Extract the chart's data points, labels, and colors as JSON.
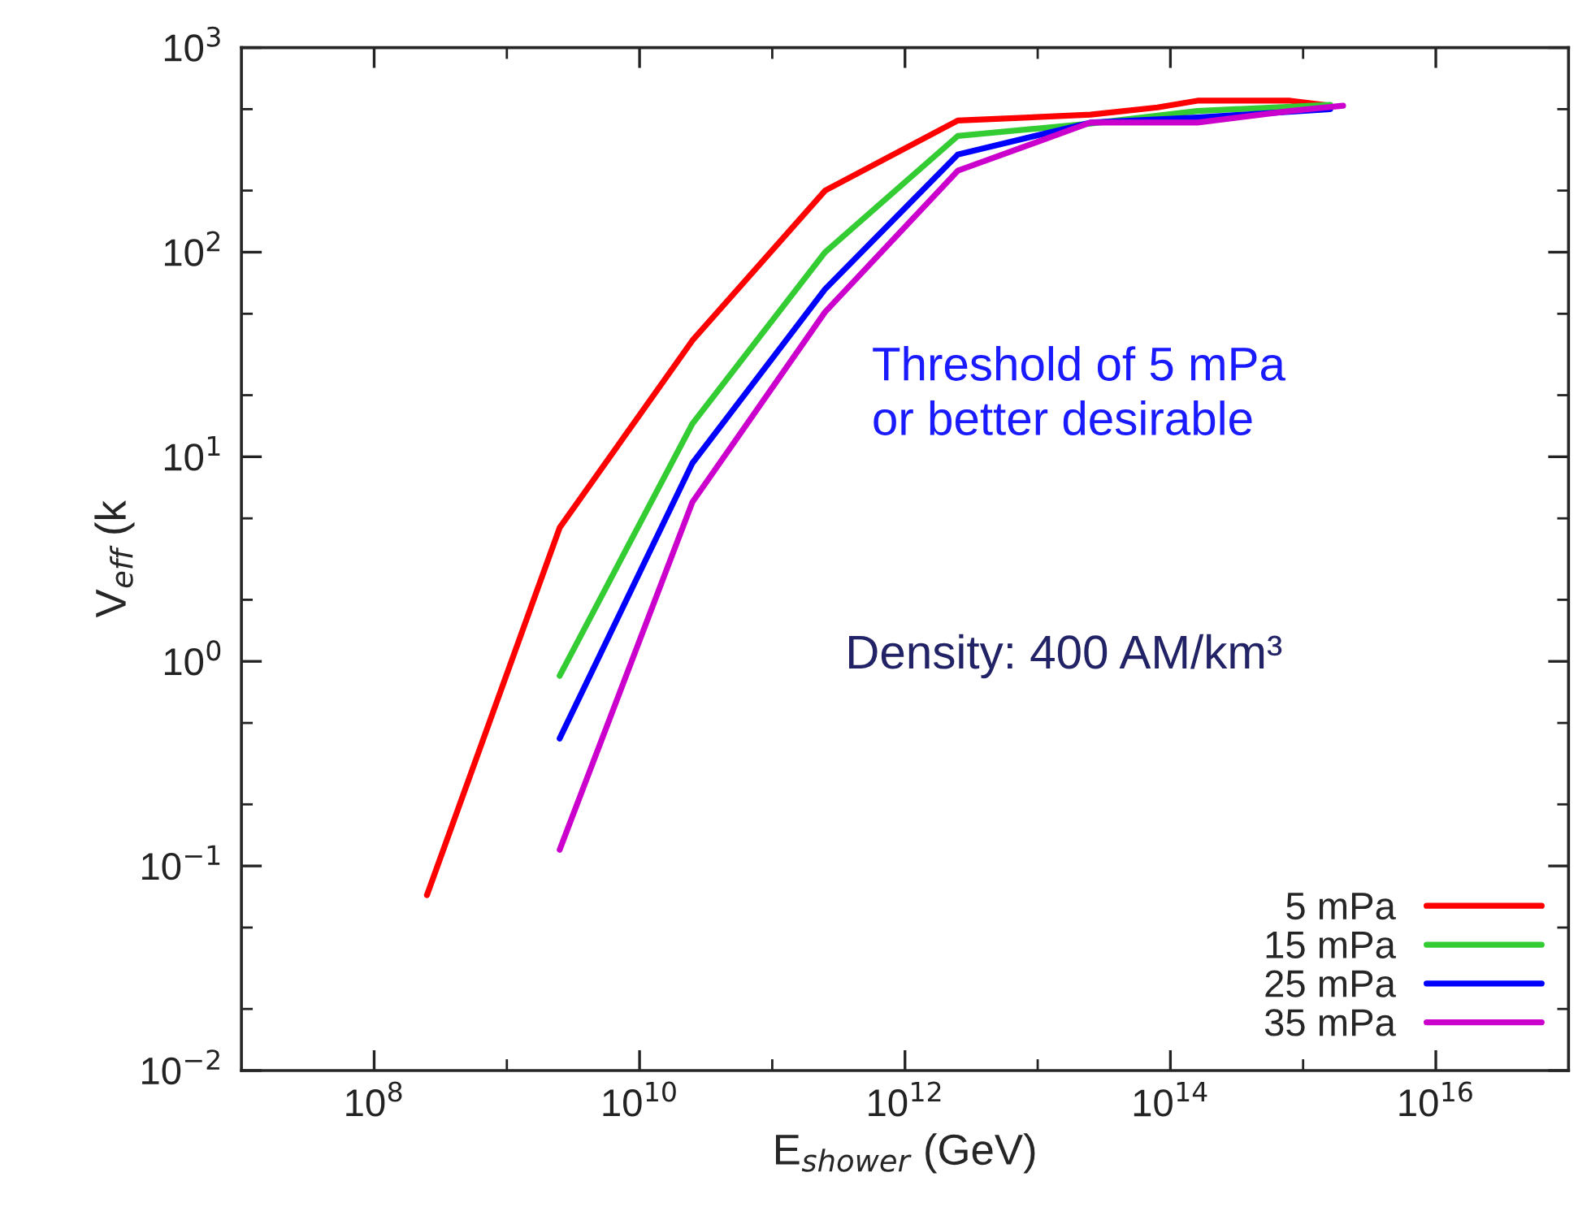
{
  "chart_data": {
    "type": "line",
    "xlabel": "E$_{shower}$ (GeV)",
    "ylabel": "V$_{eff}$ (k",
    "annotations": [
      "Threshold of 5 mPa\nor better desirable",
      "Density: 400 AM/km³"
    ],
    "log": "xy",
    "grid": false,
    "legend": "bottom right",
    "line_style": "solid",
    "marker": "none",
    "xlim": [
      10000000.0,
      1e+17
    ],
    "xticks": [
      {
        "value": 100000000.0,
        "label": "10$^{8}$"
      },
      {
        "value": 10000000000.0,
        "label": "10$^{10}$"
      },
      {
        "value": 1000000000000.0,
        "label": "10$^{12}$"
      },
      {
        "value": 100000000000000.0,
        "label": "10$^{14}$"
      },
      {
        "value": 1e+16,
        "label": "10$^{16}$"
      }
    ],
    "ylim": [
      0.01,
      1000
    ],
    "yticks": [
      {
        "value": 0.01,
        "label": "10$^{−2}$"
      },
      {
        "value": 0.1,
        "label": "10$^{−1}$"
      },
      {
        "value": 1,
        "label": "10$^{0}$"
      },
      {
        "value": 10,
        "label": "10$^{1}$"
      },
      {
        "value": 100,
        "label": "10$^{2}$"
      },
      {
        "value": 1000,
        "label": "10$^{3}$"
      }
    ],
    "series": [
      {
        "name": "5 mPa",
        "color": "#ff0000",
        "x": [
          250000000.0,
          2500000000.0,
          25000000000.0,
          250000000000.0,
          2500000000000.0,
          25000000000000.0,
          80000000000000.0,
          160000000000000.0,
          800000000000000.0,
          1600000000000000.0
        ],
        "values": [
          0.072,
          4.5,
          37,
          200,
          440,
          470,
          510,
          550,
          550,
          520
        ]
      },
      {
        "name": "15 mPa",
        "color": "#33cc33",
        "x": [
          2500000000.0,
          25000000000.0,
          250000000000.0,
          2500000000000.0,
          25000000000000.0,
          160000000000000.0,
          1600000000000000.0
        ],
        "values": [
          0.85,
          14.5,
          100,
          370,
          425,
          490,
          525
        ]
      },
      {
        "name": "25 mPa",
        "color": "#0000ff",
        "x": [
          2500000000.0,
          25000000000.0,
          250000000000.0,
          2500000000000.0,
          25000000000000.0,
          160000000000000.0,
          1600000000000000.0
        ],
        "values": [
          0.42,
          9.3,
          66,
          300,
          430,
          455,
          500
        ]
      },
      {
        "name": "35 mPa",
        "color": "#cc00cc",
        "x": [
          2500000000.0,
          25000000000.0,
          250000000000.0,
          2500000000000.0,
          25000000000000.0,
          160000000000000.0,
          800000000000000.0,
          2000000000000000.0
        ],
        "values": [
          0.12,
          6,
          51,
          250,
          430,
          430,
          490,
          520
        ]
      }
    ]
  }
}
